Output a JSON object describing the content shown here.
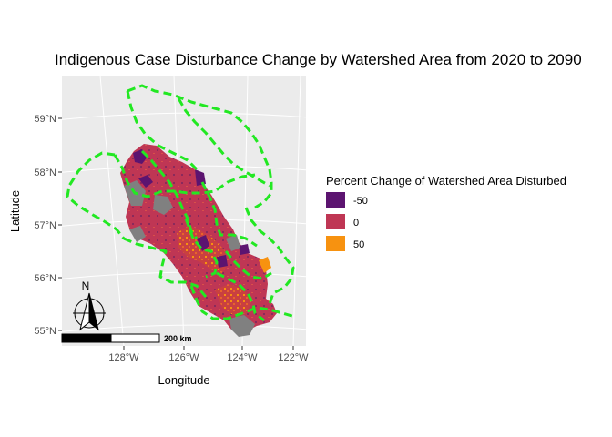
{
  "chart_data": {
    "type": "map",
    "title": "Indigenous Case Disturbance Change by Watershed Area from 2020 to 2090",
    "xlabel": "Longitude",
    "ylabel": "Latitude",
    "x_ticks": [
      "128°W",
      "126°W",
      "124°W",
      "122°W"
    ],
    "y_ticks": [
      "59°N",
      "58°N",
      "57°N",
      "56°N",
      "55°N"
    ],
    "legend": {
      "title": "Percent Change of Watershed Area Disturbed",
      "entries": [
        {
          "label": "-50",
          "color": "#5c1470"
        },
        {
          "label": "0",
          "color": "#bf3654"
        },
        {
          "label": "50",
          "color": "#f79210"
        }
      ]
    },
    "colors": {
      "panel_background": "#ebebeb",
      "gridline": "#ffffff",
      "boundary_outline": "#22e822",
      "no_data": "#808080"
    },
    "scale_bar_label": "200 km",
    "north_arrow_label": "N"
  }
}
